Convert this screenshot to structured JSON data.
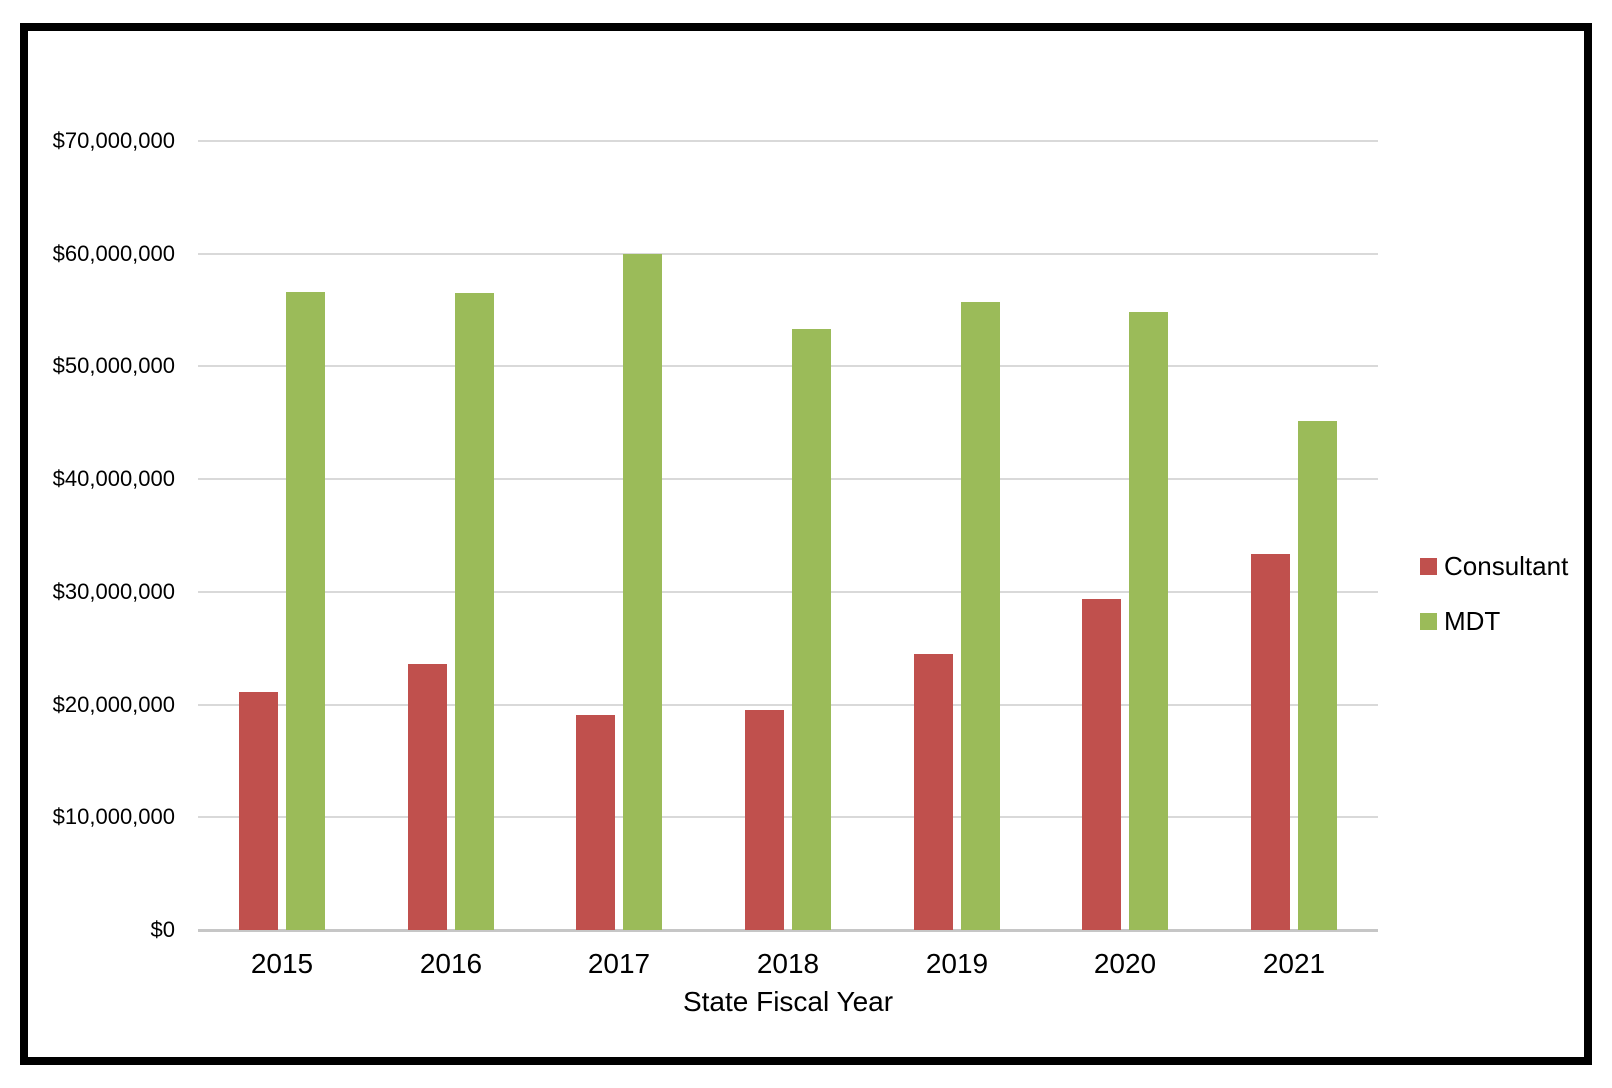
{
  "page": {
    "background": "#ffffff",
    "frame_color": "#000000"
  },
  "chart_data": {
    "type": "bar",
    "title": "",
    "xlabel": "State Fiscal Year",
    "ylabel": "",
    "categories": [
      "2015",
      "2016",
      "2017",
      "2018",
      "2019",
      "2020",
      "2021"
    ],
    "series": [
      {
        "name": "Consultant",
        "color": "#C0504D",
        "values": [
          21100000,
          23600000,
          19100000,
          19500000,
          24500000,
          29400000,
          33400000
        ]
      },
      {
        "name": "MDT",
        "color": "#9BBB59",
        "values": [
          56600000,
          56500000,
          60000000,
          53300000,
          55700000,
          54800000,
          45200000
        ]
      }
    ],
    "ylim": [
      0,
      70000000
    ],
    "ytick_step": 10000000,
    "ytick_labels": [
      "$70,000,000",
      "$60,000,000",
      "$50,000,000",
      "$40,000,000",
      "$30,000,000",
      "$20,000,000",
      "$10,000,000",
      "$0"
    ],
    "grid": "horizontal",
    "gridline_color": "#D9D9D9",
    "axisline_color": "#C6C6C6",
    "legend_position": "right",
    "legend_entries": [
      "Consultant",
      "MDT"
    ]
  }
}
